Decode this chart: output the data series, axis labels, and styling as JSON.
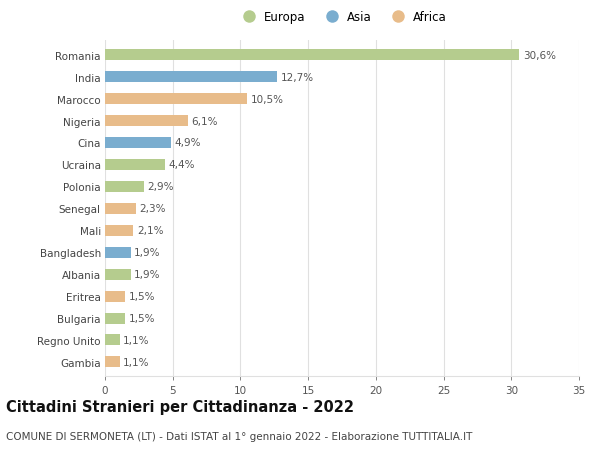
{
  "countries": [
    "Romania",
    "India",
    "Marocco",
    "Nigeria",
    "Cina",
    "Ucraina",
    "Polonia",
    "Senegal",
    "Mali",
    "Bangladesh",
    "Albania",
    "Eritrea",
    "Bulgaria",
    "Regno Unito",
    "Gambia"
  ],
  "values": [
    30.6,
    12.7,
    10.5,
    6.1,
    4.9,
    4.4,
    2.9,
    2.3,
    2.1,
    1.9,
    1.9,
    1.5,
    1.5,
    1.1,
    1.1
  ],
  "labels": [
    "30,6%",
    "12,7%",
    "10,5%",
    "6,1%",
    "4,9%",
    "4,4%",
    "2,9%",
    "2,3%",
    "2,1%",
    "1,9%",
    "1,9%",
    "1,5%",
    "1,5%",
    "1,1%",
    "1,1%"
  ],
  "continents": [
    "Europa",
    "Asia",
    "Africa",
    "Africa",
    "Asia",
    "Europa",
    "Europa",
    "Africa",
    "Africa",
    "Asia",
    "Europa",
    "Africa",
    "Europa",
    "Europa",
    "Africa"
  ],
  "colors": {
    "Europa": "#b5cc8e",
    "Asia": "#7aadcf",
    "Africa": "#e8bc8a"
  },
  "legend_order": [
    "Europa",
    "Asia",
    "Africa"
  ],
  "title": "Cittadini Stranieri per Cittadinanza - 2022",
  "subtitle": "COMUNE DI SERMONETA (LT) - Dati ISTAT al 1° gennaio 2022 - Elaborazione TUTTITALIA.IT",
  "xlim": [
    0,
    35
  ],
  "xticks": [
    0,
    5,
    10,
    15,
    20,
    25,
    30,
    35
  ],
  "background_color": "#ffffff",
  "grid_color": "#e0e0e0",
  "bar_height": 0.5,
  "title_fontsize": 10.5,
  "subtitle_fontsize": 7.5,
  "label_fontsize": 7.5,
  "tick_fontsize": 7.5,
  "legend_fontsize": 8.5
}
